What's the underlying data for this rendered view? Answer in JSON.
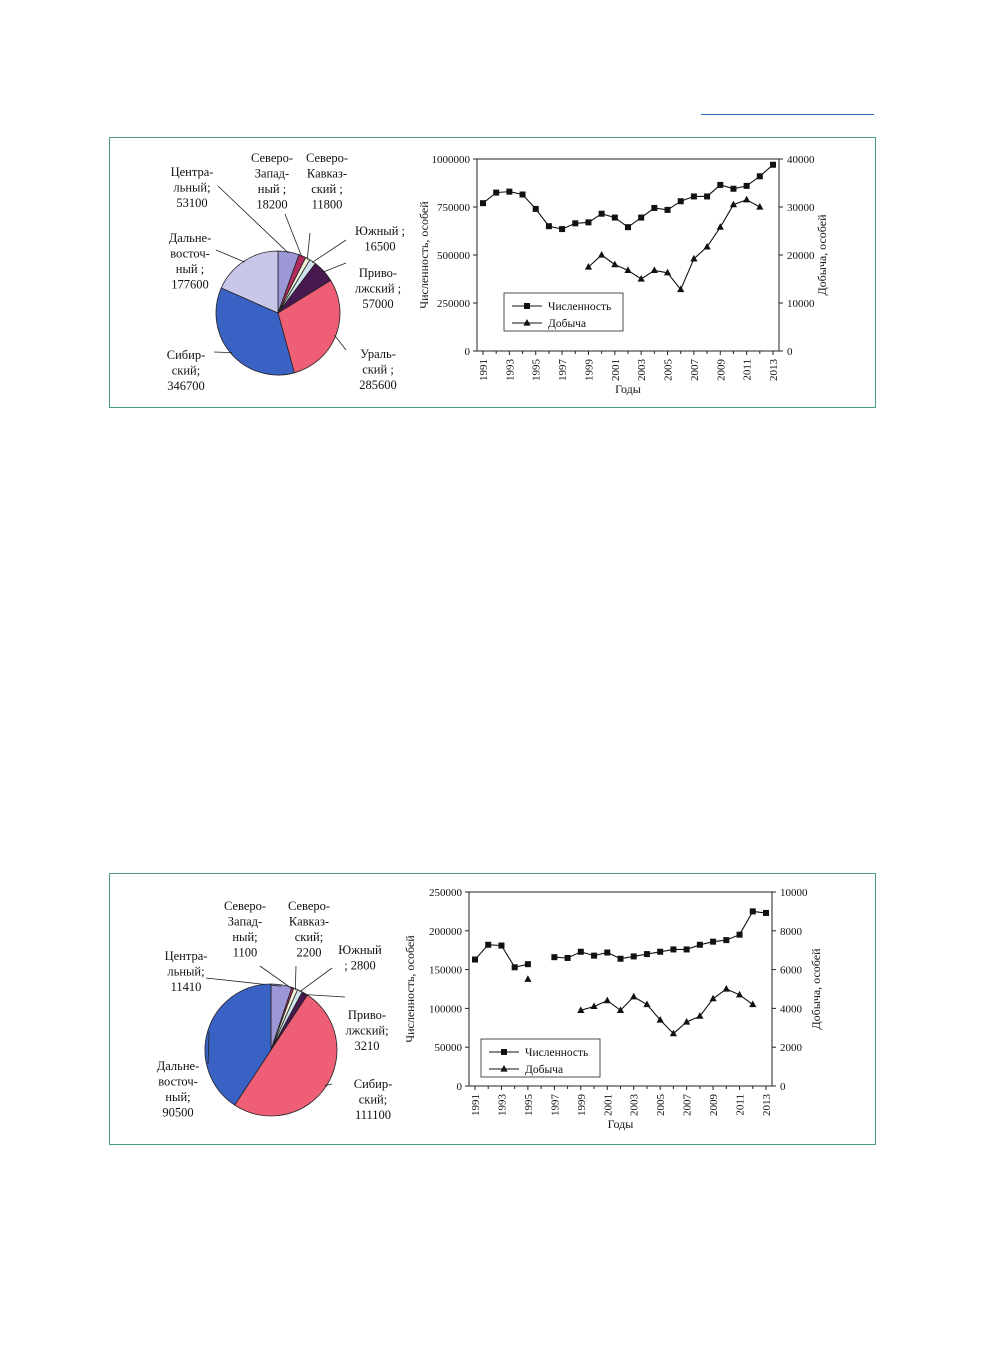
{
  "colors": {
    "frame": "#4a9a86",
    "rule": "#2a6cc0",
    "pie": {
      "central": "#9c97d6",
      "northwest": "#b02a5c",
      "northcaucasus": "#f2f2d8",
      "south": "#cfe4ee",
      "volga": "#4a1850",
      "ural": "#ee5f76",
      "siberian": "#3a62c4",
      "fareast": "#c8c7ea"
    }
  },
  "chart_data": [
    {
      "type": "pie",
      "slices": [
        {
          "key": "central",
          "lines": [
            "Центра-",
            "льный;",
            "53100"
          ],
          "value": 53100
        },
        {
          "key": "northwest",
          "lines": [
            "Северо-",
            "Запад-",
            "ный ;",
            "18200"
          ],
          "value": 18200
        },
        {
          "key": "northcaucasus",
          "lines": [
            "Северо-",
            "Кавказ-",
            "ский ;",
            "11800"
          ],
          "value": 11800
        },
        {
          "key": "south",
          "lines": [
            "Южный ;",
            "16500"
          ],
          "value": 16500
        },
        {
          "key": "volga",
          "lines": [
            "Приво-",
            "лжский ;",
            "57000"
          ],
          "value": 57000
        },
        {
          "key": "ural",
          "lines": [
            "Ураль-",
            "ский ;",
            "285600"
          ],
          "value": 285600
        },
        {
          "key": "siberian",
          "lines": [
            "Сибир-",
            "ский;",
            "346700"
          ],
          "value": 346700
        },
        {
          "key": "fareast",
          "lines": [
            "Дальне-",
            "восточ-",
            "ный ;",
            "177600"
          ],
          "value": 177600
        }
      ]
    },
    {
      "type": "line",
      "x_ticks": [
        "1991",
        "1993",
        "1995",
        "1997",
        "1999",
        "2001",
        "2003",
        "2005",
        "2007",
        "2009",
        "2011",
        "2013"
      ],
      "xlabel": "Годы",
      "ylabel": "Численность, особей",
      "y2label": "Добыча, особей",
      "ylim": [
        0,
        1000000
      ],
      "y2lim": [
        0,
        40000
      ],
      "y_ticks": [
        "0",
        "250000",
        "500000",
        "750000",
        "1000000"
      ],
      "y2_ticks": [
        "0",
        "10000",
        "20000",
        "30000",
        "40000"
      ],
      "legend": "bottom-left",
      "series": [
        {
          "name": "Численность",
          "axis": "left",
          "marker": "square",
          "points": [
            [
              1991,
              770000
            ],
            [
              1992,
              825000
            ],
            [
              1993,
              830000
            ],
            [
              1994,
              815000
            ],
            [
              1995,
              740000
            ],
            [
              1996,
              650000
            ],
            [
              1997,
              635000
            ],
            [
              1998,
              665000
            ],
            [
              1999,
              670000
            ],
            [
              2000,
              715000
            ],
            [
              2001,
              695000
            ],
            [
              2002,
              645000
            ],
            [
              2003,
              695000
            ],
            [
              2004,
              745000
            ],
            [
              2005,
              735000
            ],
            [
              2006,
              780000
            ],
            [
              2007,
              805000
            ],
            [
              2008,
              805000
            ],
            [
              2009,
              865000
            ],
            [
              2010,
              845000
            ],
            [
              2011,
              860000
            ],
            [
              2012,
              910000
            ],
            [
              2013,
              970000
            ]
          ]
        },
        {
          "name": "Добыча",
          "axis": "right",
          "marker": "triangle",
          "points": [
            [
              1999,
              17500
            ],
            [
              2000,
              20000
            ],
            [
              2001,
              18000
            ],
            [
              2002,
              16800
            ],
            [
              2003,
              15000
            ],
            [
              2004,
              16800
            ],
            [
              2005,
              16300
            ],
            [
              2006,
              12800
            ],
            [
              2007,
              19200
            ],
            [
              2008,
              21700
            ],
            [
              2009,
              25800
            ],
            [
              2010,
              30500
            ],
            [
              2011,
              31500
            ],
            [
              2012,
              30000
            ]
          ]
        }
      ]
    },
    {
      "type": "pie",
      "slices": [
        {
          "key": "central",
          "lines": [
            "Центра-",
            "льный;",
            "11410"
          ],
          "value": 11410
        },
        {
          "key": "northwest",
          "lines": [
            "Северо-",
            "Запад-",
            "ный;",
            "1100"
          ],
          "value": 1100
        },
        {
          "key": "northcaucasus",
          "lines": [
            "Северо-",
            "Кавказ-",
            "ский;",
            "2200"
          ],
          "value": 2200
        },
        {
          "key": "south",
          "lines": [
            "Южный",
            "; 2800"
          ],
          "value": 2800
        },
        {
          "key": "volga",
          "lines": [
            "Приво-",
            "лжский;",
            "3210"
          ],
          "value": 3210
        },
        {
          "key": "ural",
          "lines": [
            "Сибир-",
            "ский;",
            "111100"
          ],
          "value": 111100
        },
        {
          "key": "siberian",
          "lines": [
            "Дальне-",
            "восточ-",
            "ный;",
            "90500"
          ],
          "value": 90500
        }
      ]
    },
    {
      "type": "line",
      "x_ticks": [
        "1991",
        "1993",
        "1995",
        "1997",
        "1999",
        "2001",
        "2003",
        "2005",
        "2007",
        "2009",
        "2011",
        "2013"
      ],
      "xlabel": "Годы",
      "ylabel": "Численность, особей",
      "y2label": "Добыча, особей",
      "ylim": [
        0,
        250000
      ],
      "y2lim": [
        0,
        10000
      ],
      "y_ticks": [
        "0",
        "50000",
        "100000",
        "150000",
        "200000",
        "250000"
      ],
      "y2_ticks": [
        "0",
        "2000",
        "4000",
        "6000",
        "8000",
        "10000"
      ],
      "legend": "bottom-left",
      "series": [
        {
          "name": "Численность",
          "axis": "left",
          "marker": "square",
          "segments": [
            [
              [
                1991,
                163000
              ],
              [
                1992,
                182000
              ],
              [
                1993,
                181000
              ],
              [
                1994,
                153000
              ],
              [
                1995,
                157000
              ]
            ],
            [
              [
                1997,
                166000
              ],
              [
                1998,
                165000
              ],
              [
                1999,
                173000
              ],
              [
                2000,
                168000
              ],
              [
                2001,
                172000
              ],
              [
                2002,
                164000
              ],
              [
                2003,
                167000
              ],
              [
                2004,
                170000
              ],
              [
                2005,
                173000
              ],
              [
                2006,
                176000
              ],
              [
                2007,
                176000
              ],
              [
                2008,
                182000
              ],
              [
                2009,
                186000
              ],
              [
                2010,
                188000
              ],
              [
                2011,
                195000
              ],
              [
                2012,
                225000
              ],
              [
                2013,
                223000
              ]
            ]
          ]
        },
        {
          "name": "Добыча",
          "axis": "right",
          "marker": "triangle",
          "segments": [
            [
              [
                1995,
                5500
              ]
            ],
            [
              [
                1999,
                3900
              ],
              [
                2000,
                4100
              ],
              [
                2001,
                4400
              ],
              [
                2002,
                3900
              ],
              [
                2003,
                4600
              ],
              [
                2004,
                4200
              ],
              [
                2005,
                3400
              ],
              [
                2006,
                2700
              ],
              [
                2007,
                3300
              ],
              [
                2008,
                3600
              ],
              [
                2009,
                4500
              ],
              [
                2010,
                5000
              ],
              [
                2011,
                4700
              ],
              [
                2012,
                4200
              ]
            ]
          ]
        }
      ]
    }
  ]
}
